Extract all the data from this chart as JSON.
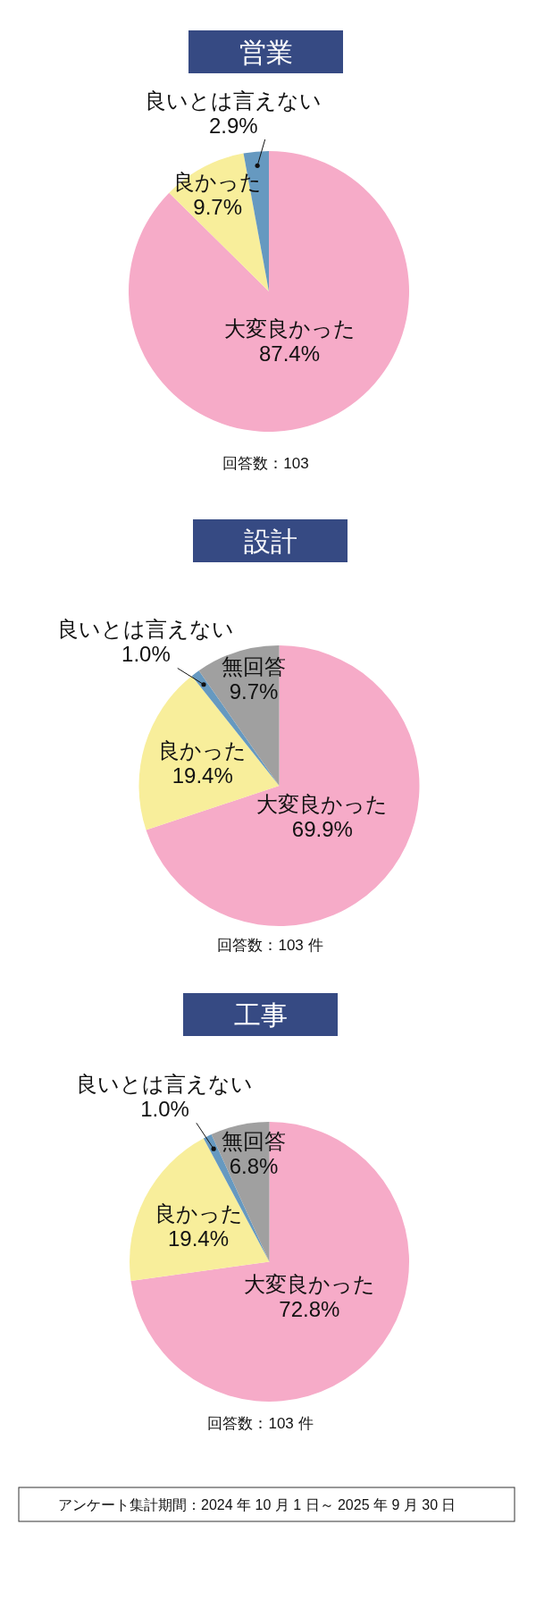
{
  "chart_data": [
    {
      "type": "pie",
      "title": "営業",
      "categories": [
        "大変良かった",
        "良かった",
        "良いとは言えない"
      ],
      "values": [
        87.4,
        9.7,
        2.9
      ],
      "colors": [
        "#f6abc8",
        "#f8ee9b",
        "#6699c0"
      ],
      "value_labels": [
        "87.4%",
        "9.7%",
        "2.9%"
      ],
      "annotations": [
        "回答数：103"
      ]
    },
    {
      "type": "pie",
      "title": "設計",
      "categories": [
        "大変良かった",
        "良かった",
        "良いとは言えない",
        "無回答"
      ],
      "values": [
        69.9,
        19.4,
        1.0,
        9.7
      ],
      "colors": [
        "#f6abc8",
        "#f8ee9b",
        "#6699c0",
        "#a0a0a0"
      ],
      "value_labels": [
        "69.9%",
        "19.4%",
        "1.0%",
        "9.7%"
      ],
      "annotations": [
        "回答数：103 件"
      ]
    },
    {
      "type": "pie",
      "title": "工事",
      "categories": [
        "大変良かった",
        "良かった",
        "良いとは言えない",
        "無回答"
      ],
      "values": [
        72.8,
        19.4,
        1.0,
        6.8
      ],
      "colors": [
        "#f6abc8",
        "#f8ee9b",
        "#6699c0",
        "#a0a0a0"
      ],
      "value_labels": [
        "72.8%",
        "19.4%",
        "1.0%",
        "6.8%"
      ],
      "annotations": [
        "回答数：103 件",
        "アンケート集計期間：2024 年 10 月 1 日～ 2025 年 9 月 30 日"
      ]
    }
  ]
}
